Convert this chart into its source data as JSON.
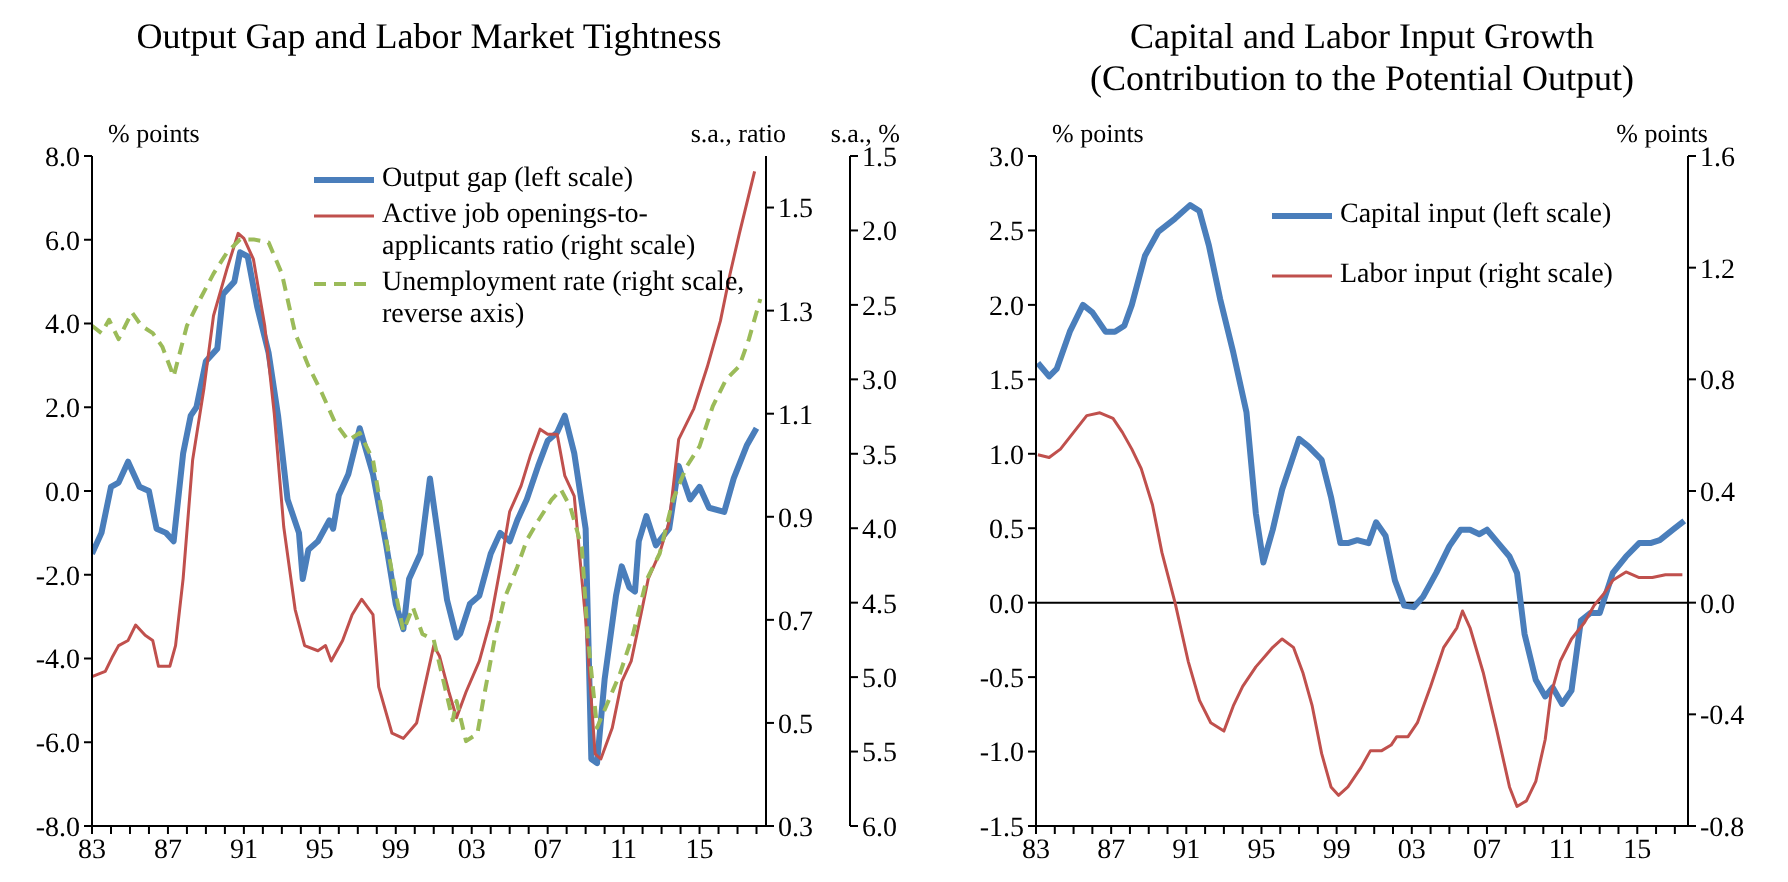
{
  "chart_data": [
    {
      "type": "line",
      "title": "Output Gap and Labor Market Tightness",
      "ylabel": "% points",
      "y2label": "s.a., ratio",
      "y3label": "s.a., %",
      "legend": "top right",
      "xlim": [
        1983,
        2018.5
      ],
      "xticks": [
        {
          "value": 1983,
          "label": "83"
        },
        {
          "value": 1984,
          "label": null
        },
        {
          "value": 1985,
          "label": null
        },
        {
          "value": 1986,
          "label": null
        },
        {
          "value": 1987,
          "label": "87"
        },
        {
          "value": 1988,
          "label": null
        },
        {
          "value": 1989,
          "label": null
        },
        {
          "value": 1990,
          "label": null
        },
        {
          "value": 1991,
          "label": "91"
        },
        {
          "value": 1992,
          "label": null
        },
        {
          "value": 1993,
          "label": null
        },
        {
          "value": 1994,
          "label": null
        },
        {
          "value": 1995,
          "label": "95"
        },
        {
          "value": 1996,
          "label": null
        },
        {
          "value": 1997,
          "label": null
        },
        {
          "value": 1998,
          "label": null
        },
        {
          "value": 1999,
          "label": "99"
        },
        {
          "value": 2000,
          "label": null
        },
        {
          "value": 2001,
          "label": null
        },
        {
          "value": 2002,
          "label": null
        },
        {
          "value": 2003,
          "label": "03"
        },
        {
          "value": 2004,
          "label": null
        },
        {
          "value": 2005,
          "label": null
        },
        {
          "value": 2006,
          "label": null
        },
        {
          "value": 2007,
          "label": "07"
        },
        {
          "value": 2008,
          "label": null
        },
        {
          "value": 2009,
          "label": null
        },
        {
          "value": 2010,
          "label": null
        },
        {
          "value": 2011,
          "label": "11"
        },
        {
          "value": 2012,
          "label": null
        },
        {
          "value": 2013,
          "label": null
        },
        {
          "value": 2014,
          "label": null
        },
        {
          "value": 2015,
          "label": "15"
        },
        {
          "value": 2016,
          "label": null
        },
        {
          "value": 2017,
          "label": null
        },
        {
          "value": 2018,
          "label": null
        }
      ],
      "ylim": [
        -8,
        8
      ],
      "yticks": [
        {
          "value": -8,
          "label": "-8.0"
        },
        {
          "value": -6,
          "label": "-6.0"
        },
        {
          "value": -4,
          "label": "-4.0"
        },
        {
          "value": -2,
          "label": "-2.0"
        },
        {
          "value": 0,
          "label": "0.0"
        },
        {
          "value": 2,
          "label": "2.0"
        },
        {
          "value": 4,
          "label": "4.0"
        },
        {
          "value": 6,
          "label": "6.0"
        },
        {
          "value": 8,
          "label": "8.0"
        }
      ],
      "y2lim": [
        0.3,
        1.6
      ],
      "y2ticks": [
        0.3,
        0.5,
        0.7,
        0.9,
        1.1,
        1.3,
        1.5
      ],
      "y3lim": [
        6.0,
        1.5
      ],
      "y3ticks": [
        1.5,
        {
          "value": 2,
          "label": "2.0"
        },
        2.5,
        {
          "value": 3,
          "label": "3.0"
        },
        3.5,
        {
          "value": 4,
          "label": "4.0"
        },
        4.5,
        {
          "value": 5,
          "label": "5.0"
        },
        5.5,
        {
          "value": 6,
          "label": "6.0"
        }
      ],
      "series": [
        {
          "name": "Output gap (left scale)",
          "color": "#4a7ebb",
          "x": [
            1983.0,
            1983.5,
            1984.0,
            1984.4,
            1984.9,
            1985.5,
            1986.0,
            1986.4,
            1986.9,
            1987.3,
            1987.8,
            1988.2,
            1988.5,
            1989.0,
            1989.6,
            1989.9,
            1990.5,
            1990.8,
            1991.2,
            1991.7,
            1992.3,
            1992.8,
            1993.3,
            1993.9,
            1994.1,
            1994.4,
            1994.9,
            1995.5,
            1995.7,
            1996.0,
            1996.5,
            1997.1,
            1997.8,
            1998.5,
            1999.0,
            1999.4,
            1999.7,
            2000.3,
            2000.8,
            2001.3,
            2001.7,
            2002.2,
            2002.4,
            2002.9,
            2003.4,
            2004.0,
            2004.5,
            2005.0,
            2005.4,
            2005.9,
            2006.5,
            2007.0,
            2007.5,
            2007.9,
            2008.4,
            2009.0,
            2009.3,
            2009.6,
            2010.0,
            2010.6,
            2010.9,
            2011.3,
            2011.6,
            2011.8,
            2012.2,
            2012.7,
            2013.4,
            2013.9,
            2014.5,
            2015.0,
            2015.5,
            2016.3,
            2016.8,
            2017.5,
            2018.0
          ],
          "values": [
            -1.5,
            -1.0,
            0.1,
            0.2,
            0.7,
            0.1,
            0.0,
            -0.9,
            -1.0,
            -1.2,
            0.9,
            1.8,
            2.0,
            3.1,
            3.4,
            4.7,
            5.0,
            5.7,
            5.6,
            4.4,
            3.3,
            1.8,
            -0.2,
            -1.0,
            -2.1,
            -1.4,
            -1.2,
            -0.7,
            -0.9,
            -0.1,
            0.4,
            1.5,
            0.4,
            -1.3,
            -2.7,
            -3.3,
            -2.1,
            -1.5,
            0.3,
            -1.3,
            -2.6,
            -3.5,
            -3.4,
            -2.7,
            -2.5,
            -1.5,
            -1.0,
            -1.2,
            -0.7,
            -0.2,
            0.6,
            1.2,
            1.4,
            1.8,
            0.9,
            -0.9,
            -6.4,
            -6.5,
            -4.5,
            -2.5,
            -1.8,
            -2.3,
            -2.4,
            -1.2,
            -0.6,
            -1.3,
            -0.9,
            0.6,
            -0.2,
            0.1,
            -0.4,
            -0.5,
            0.3,
            1.1,
            1.5
          ]
        },
        {
          "name": "Active job openings-to-applicants ratio (right scale)",
          "color": "#c0504d",
          "axis": "y2",
          "x": [
            1983.0,
            1983.7,
            1984.1,
            1984.4,
            1984.9,
            1985.3,
            1985.8,
            1986.2,
            1986.5,
            1987.1,
            1987.4,
            1987.8,
            1988.3,
            1988.9,
            1989.4,
            1990.1,
            1990.7,
            1991.0,
            1991.5,
            1992.1,
            1992.6,
            1993.1,
            1993.7,
            1994.2,
            1994.9,
            1995.3,
            1995.6,
            1996.2,
            1996.7,
            1997.2,
            1997.8,
            1998.1,
            1998.8,
            1999.4,
            2000.1,
            2001.0,
            2001.3,
            2001.8,
            2002.2,
            2002.7,
            2003.4,
            2004.0,
            2004.5,
            2005.0,
            2005.6,
            2006.1,
            2006.6,
            2007.0,
            2007.5,
            2007.9,
            2008.4,
            2009.0,
            2009.5,
            2009.8,
            2010.4,
            2010.9,
            2011.4,
            2011.8,
            2012.3,
            2012.9,
            2013.4,
            2013.9,
            2014.7,
            2015.4,
            2016.1,
            2016.6,
            2017.1,
            2017.7,
            2017.9
          ],
          "values": [
            0.59,
            0.6,
            0.63,
            0.65,
            0.66,
            0.69,
            0.67,
            0.66,
            0.61,
            0.61,
            0.65,
            0.78,
            1.01,
            1.15,
            1.29,
            1.38,
            1.45,
            1.44,
            1.4,
            1.27,
            1.1,
            0.88,
            0.72,
            0.65,
            0.64,
            0.65,
            0.62,
            0.66,
            0.71,
            0.74,
            0.71,
            0.57,
            0.48,
            0.47,
            0.5,
            0.65,
            0.63,
            0.56,
            0.51,
            0.56,
            0.62,
            0.7,
            0.8,
            0.91,
            0.96,
            1.02,
            1.07,
            1.06,
            1.06,
            0.98,
            0.94,
            0.7,
            0.44,
            0.43,
            0.49,
            0.58,
            0.62,
            0.69,
            0.78,
            0.83,
            0.89,
            1.05,
            1.11,
            1.19,
            1.28,
            1.37,
            1.45,
            1.54,
            1.57
          ]
        },
        {
          "name": "Unemployment rate (right scale, reverse axis)",
          "color": "#9bbb59",
          "axis": "y3",
          "line_style": "dashed",
          "x": [
            1983.0,
            1983.5,
            1983.9,
            1984.4,
            1985.1,
            1985.6,
            1986.2,
            1986.7,
            1987.3,
            1988.0,
            1988.7,
            1989.4,
            1990.1,
            1990.8,
            1991.5,
            1992.3,
            1993.0,
            1993.7,
            1994.4,
            1995.1,
            1995.8,
            1996.5,
            1997.1,
            1997.8,
            1998.5,
            1999.0,
            1999.4,
            1999.9,
            2000.4,
            2001.0,
            2001.5,
            2002.0,
            2002.2,
            2002.7,
            2003.3,
            2003.6,
            2004.2,
            2004.7,
            2005.4,
            2005.9,
            2006.5,
            2007.2,
            2007.7,
            2008.2,
            2008.8,
            2009.1,
            2009.6,
            2010.2,
            2010.8,
            2011.5,
            2012.2,
            2012.9,
            2013.6,
            2014.3,
            2015.0,
            2015.7,
            2016.4,
            2017.1,
            2017.6,
            2018.0,
            2018.2
          ],
          "values": [
            2.64,
            2.69,
            2.6,
            2.73,
            2.55,
            2.64,
            2.69,
            2.78,
            2.98,
            2.64,
            2.46,
            2.29,
            2.15,
            2.06,
            2.06,
            2.08,
            2.29,
            2.69,
            2.91,
            3.09,
            3.29,
            3.41,
            3.36,
            3.54,
            4.08,
            4.44,
            4.69,
            4.53,
            4.71,
            4.75,
            5.02,
            5.29,
            5.16,
            5.43,
            5.38,
            5.16,
            4.75,
            4.48,
            4.26,
            4.08,
            3.95,
            3.81,
            3.74,
            3.86,
            4.13,
            4.71,
            5.34,
            5.16,
            4.98,
            4.71,
            4.35,
            4.17,
            3.81,
            3.59,
            3.45,
            3.18,
            3.0,
            2.91,
            2.73,
            2.55,
            2.46
          ]
        }
      ]
    },
    {
      "type": "line",
      "title": "Capital and Labor Input Growth\n(Contribution to the Potential Output)",
      "ylabel": "% points",
      "y2label": "% points",
      "legend": "top right",
      "xlim": [
        1983,
        2017.7
      ],
      "xticks": [
        {
          "value": 1983,
          "label": "83"
        },
        {
          "value": 1984,
          "label": null
        },
        {
          "value": 1985,
          "label": null
        },
        {
          "value": 1986,
          "label": null
        },
        {
          "value": 1987,
          "label": "87"
        },
        {
          "value": 1988,
          "label": null
        },
        {
          "value": 1989,
          "label": null
        },
        {
          "value": 1990,
          "label": null
        },
        {
          "value": 1991,
          "label": "91"
        },
        {
          "value": 1992,
          "label": null
        },
        {
          "value": 1993,
          "label": null
        },
        {
          "value": 1994,
          "label": null
        },
        {
          "value": 1995,
          "label": "95"
        },
        {
          "value": 1996,
          "label": null
        },
        {
          "value": 1997,
          "label": null
        },
        {
          "value": 1998,
          "label": null
        },
        {
          "value": 1999,
          "label": "99"
        },
        {
          "value": 2000,
          "label": null
        },
        {
          "value": 2001,
          "label": null
        },
        {
          "value": 2002,
          "label": null
        },
        {
          "value": 2003,
          "label": "03"
        },
        {
          "value": 2004,
          "label": null
        },
        {
          "value": 2005,
          "label": null
        },
        {
          "value": 2006,
          "label": null
        },
        {
          "value": 2007,
          "label": "07"
        },
        {
          "value": 2008,
          "label": null
        },
        {
          "value": 2009,
          "label": null
        },
        {
          "value": 2010,
          "label": null
        },
        {
          "value": 2011,
          "label": "11"
        },
        {
          "value": 2012,
          "label": null
        },
        {
          "value": 2013,
          "label": null
        },
        {
          "value": 2014,
          "label": null
        },
        {
          "value": 2015,
          "label": "15"
        },
        {
          "value": 2016,
          "label": null
        },
        {
          "value": 2017,
          "label": null
        }
      ],
      "ylim": [
        -1.5,
        3.0
      ],
      "yticks": [
        -1.5,
        {
          "value": -1,
          "label": "-1.0"
        },
        -0.5,
        {
          "value": 0,
          "label": "0.0"
        },
        0.5,
        {
          "value": 1,
          "label": "1.0"
        },
        1.5,
        {
          "value": 2,
          "label": "2.0"
        },
        2.5,
        {
          "value": 3,
          "label": "3.0"
        }
      ],
      "y2lim": [
        -0.8,
        1.6
      ],
      "y2ticks": [
        -0.8,
        -0.4,
        {
          "value": 0,
          "label": "0.0"
        },
        0.4,
        0.8,
        1.2,
        1.6
      ],
      "ref_lines": [
        {
          "axis": "y",
          "value": 0,
          "label": null,
          "color": "#000000"
        }
      ],
      "series": [
        {
          "name": "Capital input (left scale)",
          "color": "#4a7ebb",
          "x": [
            1983.1,
            1983.7,
            1984.1,
            1984.8,
            1985.5,
            1986.0,
            1986.7,
            1987.2,
            1987.7,
            1988.1,
            1988.8,
            1989.5,
            1990.4,
            1991.2,
            1991.7,
            1992.2,
            1992.8,
            1993.5,
            1994.2,
            1994.7,
            1995.1,
            1995.6,
            1996.1,
            1997.0,
            1997.5,
            1998.2,
            1998.7,
            1999.2,
            1999.6,
            2000.1,
            2000.7,
            2001.1,
            2001.6,
            2002.1,
            2002.6,
            2003.1,
            2003.6,
            2004.3,
            2005.0,
            2005.6,
            2006.1,
            2006.6,
            2007.0,
            2007.6,
            2008.2,
            2008.6,
            2009.0,
            2009.6,
            2010.1,
            2010.5,
            2011.0,
            2011.5,
            2012.0,
            2012.5,
            2013.0,
            2013.7,
            2014.4,
            2015.1,
            2015.7,
            2016.2,
            2016.9,
            2017.5
          ],
          "values": [
            1.61,
            1.52,
            1.57,
            1.82,
            2.0,
            1.95,
            1.82,
            1.82,
            1.86,
            2.0,
            2.33,
            2.49,
            2.58,
            2.67,
            2.63,
            2.4,
            2.04,
            1.68,
            1.28,
            0.6,
            0.27,
            0.49,
            0.76,
            1.1,
            1.05,
            0.96,
            0.71,
            0.4,
            0.4,
            0.42,
            0.4,
            0.54,
            0.45,
            0.15,
            -0.02,
            -0.03,
            0.04,
            0.2,
            0.38,
            0.49,
            0.49,
            0.46,
            0.49,
            0.4,
            0.31,
            0.2,
            -0.21,
            -0.52,
            -0.63,
            -0.57,
            -0.68,
            -0.59,
            -0.12,
            -0.07,
            -0.07,
            0.2,
            0.31,
            0.4,
            0.4,
            0.42,
            0.49,
            0.55
          ]
        },
        {
          "name": "Labor input (right scale)",
          "color": "#c0504d",
          "axis": "y2",
          "x": [
            1983.1,
            1983.7,
            1984.3,
            1985.0,
            1985.7,
            1986.4,
            1987.1,
            1987.6,
            1988.1,
            1988.6,
            1989.2,
            1989.7,
            1990.4,
            1991.1,
            1991.7,
            1992.3,
            1993.0,
            1993.5,
            1994.0,
            1994.7,
            1995.6,
            1996.1,
            1996.7,
            1997.2,
            1997.7,
            1998.2,
            1998.7,
            1999.1,
            1999.6,
            2000.3,
            2000.8,
            2001.4,
            2001.9,
            2002.2,
            2002.8,
            2003.3,
            2004.0,
            2004.7,
            2005.4,
            2005.7,
            2006.1,
            2006.8,
            2007.5,
            2008.2,
            2008.6,
            2009.1,
            2009.6,
            2010.1,
            2010.4,
            2010.9,
            2011.5,
            2012.2,
            2012.7,
            2013.2,
            2013.7,
            2014.4,
            2015.1,
            2015.8,
            2016.5,
            2017.4
          ],
          "values": [
            0.53,
            0.52,
            0.55,
            0.61,
            0.67,
            0.68,
            0.66,
            0.61,
            0.55,
            0.48,
            0.35,
            0.18,
            0.0,
            -0.21,
            -0.35,
            -0.43,
            -0.46,
            -0.37,
            -0.3,
            -0.23,
            -0.16,
            -0.13,
            -0.16,
            -0.25,
            -0.37,
            -0.54,
            -0.66,
            -0.69,
            -0.66,
            -0.59,
            -0.53,
            -0.53,
            -0.51,
            -0.48,
            -0.48,
            -0.43,
            -0.3,
            -0.16,
            -0.09,
            -0.03,
            -0.09,
            -0.25,
            -0.45,
            -0.66,
            -0.73,
            -0.71,
            -0.64,
            -0.49,
            -0.33,
            -0.21,
            -0.13,
            -0.07,
            -0.01,
            0.03,
            0.08,
            0.11,
            0.09,
            0.09,
            0.1,
            0.1
          ]
        }
      ]
    }
  ]
}
